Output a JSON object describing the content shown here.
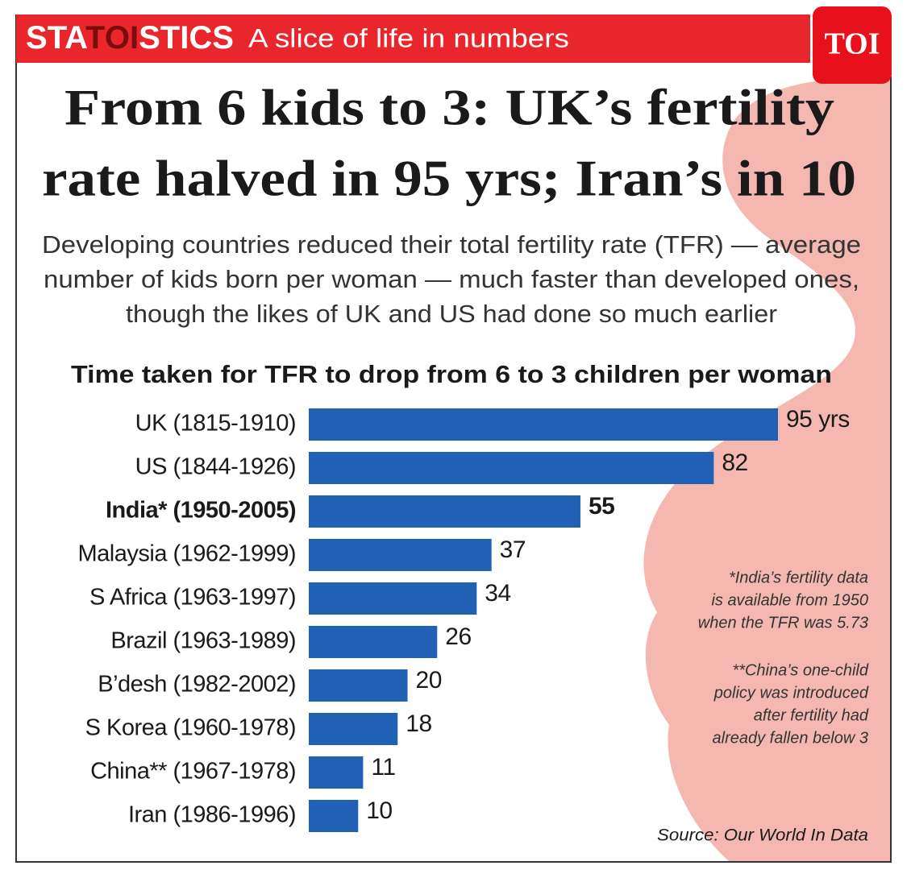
{
  "header": {
    "brand": [
      "STA",
      "TOI",
      "STICS"
    ],
    "tagline": "A slice of life in numbers",
    "logo": "TOI"
  },
  "title": [
    "From 6 kids to 3: UK’s fertility",
    "rate halved in 95 yrs; Iran’s in 10"
  ],
  "subtitle": [
    "Developing countries reduced their total fertility rate (TFR) — average",
    "number of kids born per woman — much faster than developed ones,",
    "though the likes of UK and US had done so much earlier"
  ],
  "chart_data": {
    "type": "hbar",
    "title": "Time taken for TFR to drop from 6 to 3 children per woman",
    "categories": [
      "UK (1815-1910)",
      "US (1844-1926)",
      "India* (1950-2005)",
      "Malaysia (1962-1999)",
      "S Africa (1963-1997)",
      "Brazil (1963-1989)",
      "B’desh (1982-2002)",
      "S Korea (1960-1978)",
      "China** (1967-1978)",
      "Iran (1986-1996)"
    ],
    "values": [
      95,
      82,
      55,
      37,
      34,
      26,
      20,
      18,
      11,
      10
    ],
    "value_labels": [
      "95 yrs",
      "82",
      "55",
      "37",
      "34",
      "26",
      "20",
      "18",
      "11",
      "10"
    ],
    "color": "#2161b5",
    "highlight_index": 2
  },
  "notes": [
    [
      "*India’s fertility data",
      "is available from 1950",
      "when the TFR was 5.73"
    ],
    [
      "**China’s one-child",
      "policy was introduced",
      "after fertility had",
      "already fallen below 3"
    ]
  ],
  "source": "Source: Our World In Data"
}
